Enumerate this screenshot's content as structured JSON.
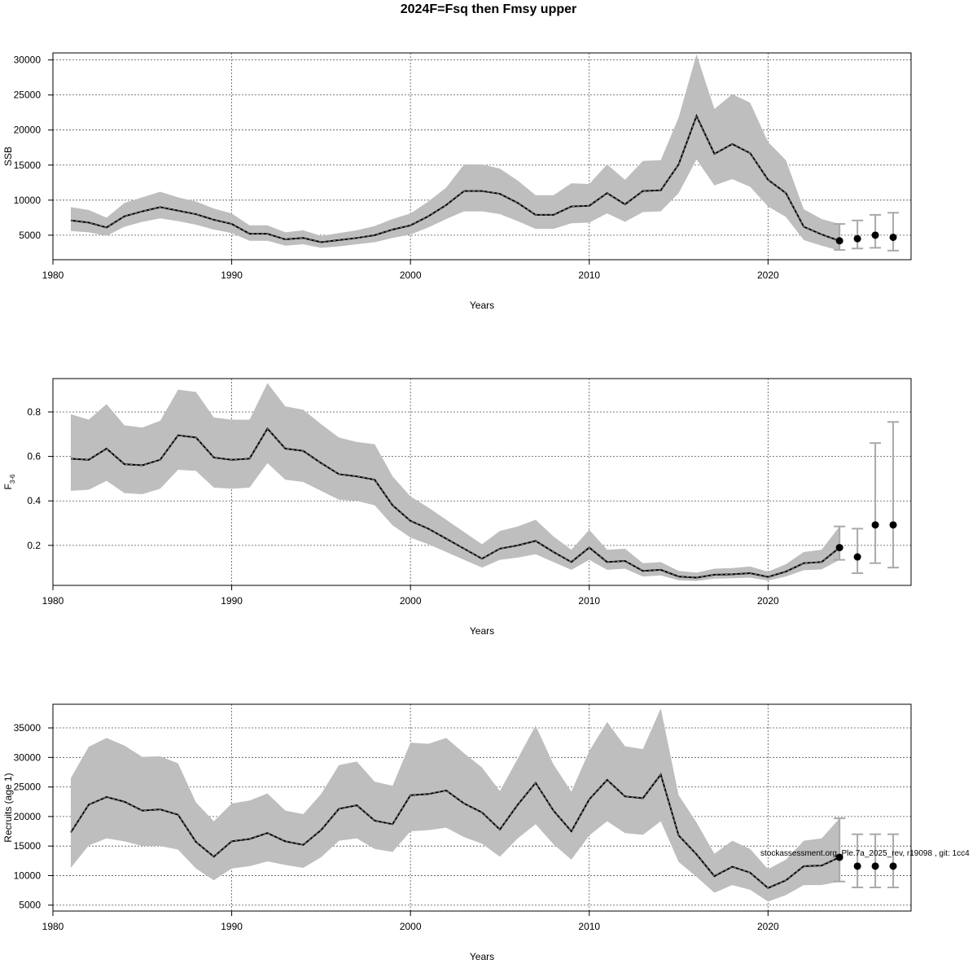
{
  "title": "2024F=Fsq then Fmsy upper",
  "footnote": "stockassessment.org, Ple.7a_2025_rev, r19098 , git: 1cc4",
  "chart_data": [
    {
      "type": "line",
      "xlabel": "Years",
      "ylabel": "SSB",
      "xlim": [
        1980,
        2028
      ],
      "ylim": [
        1500,
        31000
      ],
      "x_ticks": [
        1980,
        1990,
        2000,
        2010,
        2020
      ],
      "y_ticks": [
        5000,
        10000,
        15000,
        20000,
        25000,
        30000
      ],
      "grid": true,
      "historical": {
        "x": [
          1981,
          1982,
          1983,
          1984,
          1985,
          1986,
          1987,
          1988,
          1989,
          1990,
          1991,
          1992,
          1993,
          1994,
          1995,
          1996,
          1997,
          1998,
          1999,
          2000,
          2001,
          2002,
          2003,
          2004,
          2005,
          2006,
          2007,
          2008,
          2009,
          2010,
          2011,
          2012,
          2013,
          2014,
          2015,
          2016,
          2017,
          2018,
          2019,
          2020,
          2021,
          2022,
          2023,
          2024
        ],
        "estimate": [
          7100,
          6800,
          6100,
          7700,
          8400,
          9000,
          8500,
          8000,
          7200,
          6600,
          5200,
          5200,
          4400,
          4600,
          4000,
          4300,
          4600,
          5000,
          5800,
          6400,
          7700,
          9300,
          11300,
          11300,
          10900,
          9600,
          7900,
          7900,
          9100,
          9200,
          11000,
          9400,
          11300,
          11400,
          15100,
          22000,
          16600,
          18000,
          16700,
          12900,
          11000,
          6200,
          5100,
          4200
        ],
        "lower": [
          5600,
          5400,
          4900,
          6200,
          6900,
          7400,
          7000,
          6500,
          5800,
          5300,
          4200,
          4200,
          3500,
          3700,
          3200,
          3400,
          3700,
          4000,
          4600,
          5100,
          6100,
          7300,
          8400,
          8400,
          8000,
          7000,
          5900,
          5900,
          6700,
          6800,
          8100,
          6900,
          8300,
          8400,
          11000,
          15800,
          12100,
          13000,
          11900,
          9100,
          7600,
          4300,
          3500,
          2800
        ],
        "upper": [
          9000,
          8600,
          7500,
          9600,
          10400,
          11200,
          10400,
          9800,
          8800,
          8100,
          6400,
          6400,
          5400,
          5700,
          4900,
          5300,
          5700,
          6300,
          7300,
          8100,
          9800,
          11800,
          15100,
          15100,
          14500,
          12800,
          10700,
          10700,
          12400,
          12300,
          15100,
          12900,
          15600,
          15700,
          21800,
          30800,
          23000,
          25100,
          23900,
          18300,
          15700,
          8700,
          7300,
          6600
        ]
      },
      "forecast": {
        "x": [
          2024,
          2025,
          2026,
          2027
        ],
        "estimate": [
          4200,
          4500,
          5000,
          4700
        ],
        "lower": [
          2900,
          3100,
          3200,
          2800
        ],
        "upper": [
          6600,
          7100,
          7900,
          8200
        ]
      }
    },
    {
      "type": "line",
      "xlabel": "Years",
      "ylabel": "F",
      "ylabel_sub": "3-6",
      "xlim": [
        1980,
        2028
      ],
      "ylim": [
        0.02,
        0.95
      ],
      "x_ticks": [
        1980,
        1990,
        2000,
        2010,
        2020
      ],
      "y_ticks": [
        0.2,
        0.4,
        0.6,
        0.8
      ],
      "grid": true,
      "historical": {
        "x": [
          1981,
          1982,
          1983,
          1984,
          1985,
          1986,
          1987,
          1988,
          1989,
          1990,
          1991,
          1992,
          1993,
          1994,
          1995,
          1996,
          1997,
          1998,
          1999,
          2000,
          2001,
          2002,
          2003,
          2004,
          2005,
          2006,
          2007,
          2008,
          2009,
          2010,
          2011,
          2012,
          2013,
          2014,
          2015,
          2016,
          2017,
          2018,
          2019,
          2020,
          2021,
          2022,
          2023,
          2024
        ],
        "estimate": [
          0.59,
          0.585,
          0.635,
          0.565,
          0.56,
          0.585,
          0.695,
          0.685,
          0.595,
          0.585,
          0.59,
          0.725,
          0.635,
          0.625,
          0.57,
          0.52,
          0.51,
          0.495,
          0.38,
          0.31,
          0.275,
          0.23,
          0.185,
          0.14,
          0.185,
          0.2,
          0.22,
          0.17,
          0.125,
          0.19,
          0.125,
          0.13,
          0.085,
          0.09,
          0.06,
          0.055,
          0.068,
          0.07,
          0.075,
          0.058,
          0.082,
          0.12,
          0.125,
          0.19
        ],
        "lower": [
          0.445,
          0.45,
          0.49,
          0.435,
          0.43,
          0.455,
          0.54,
          0.535,
          0.46,
          0.455,
          0.46,
          0.57,
          0.495,
          0.485,
          0.445,
          0.405,
          0.4,
          0.38,
          0.29,
          0.235,
          0.205,
          0.17,
          0.135,
          0.1,
          0.135,
          0.145,
          0.16,
          0.125,
          0.09,
          0.135,
          0.09,
          0.095,
          0.06,
          0.065,
          0.043,
          0.04,
          0.05,
          0.052,
          0.055,
          0.042,
          0.06,
          0.088,
          0.092,
          0.135
        ],
        "upper": [
          0.79,
          0.765,
          0.835,
          0.74,
          0.73,
          0.76,
          0.9,
          0.89,
          0.775,
          0.765,
          0.765,
          0.93,
          0.825,
          0.81,
          0.745,
          0.685,
          0.665,
          0.655,
          0.51,
          0.42,
          0.37,
          0.315,
          0.26,
          0.205,
          0.265,
          0.285,
          0.315,
          0.24,
          0.18,
          0.27,
          0.18,
          0.185,
          0.12,
          0.125,
          0.085,
          0.077,
          0.095,
          0.098,
          0.105,
          0.082,
          0.115,
          0.17,
          0.18,
          0.285
        ]
      },
      "forecast": {
        "x": [
          2024,
          2025,
          2026,
          2027
        ],
        "estimate": [
          0.19,
          0.148,
          0.292,
          0.292
        ],
        "lower": [
          0.135,
          0.075,
          0.12,
          0.1
        ],
        "upper": [
          0.285,
          0.275,
          0.66,
          0.755
        ]
      }
    },
    {
      "type": "line",
      "xlabel": "Years",
      "ylabel": "Recruits (age 1)",
      "xlim": [
        1980,
        2028
      ],
      "ylim": [
        4000,
        39000
      ],
      "x_ticks": [
        1980,
        1990,
        2000,
        2010,
        2020
      ],
      "y_ticks": [
        5000,
        10000,
        15000,
        20000,
        25000,
        30000,
        35000
      ],
      "grid": true,
      "historical": {
        "x": [
          1981,
          1982,
          1983,
          1984,
          1985,
          1986,
          1987,
          1988,
          1989,
          1990,
          1991,
          1992,
          1993,
          1994,
          1995,
          1996,
          1997,
          1998,
          1999,
          2000,
          2001,
          2002,
          2003,
          2004,
          2005,
          2006,
          2007,
          2008,
          2009,
          2010,
          2011,
          2012,
          2013,
          2014,
          2015,
          2016,
          2017,
          2018,
          2019,
          2020,
          2021,
          2022,
          2023,
          2024
        ],
        "estimate": [
          17300,
          22000,
          23300,
          22500,
          21000,
          21200,
          20300,
          15700,
          13200,
          15800,
          16200,
          17200,
          15800,
          15200,
          17700,
          21300,
          21900,
          19300,
          18700,
          23600,
          23800,
          24400,
          22200,
          20700,
          17800,
          22000,
          25700,
          21000,
          17500,
          22900,
          26200,
          23400,
          23100,
          27100,
          16800,
          13600,
          9900,
          11500,
          10500,
          7900,
          9200,
          11600,
          11700,
          13100
        ],
        "lower": [
          11300,
          15100,
          16300,
          15800,
          15000,
          15000,
          14400,
          11200,
          9200,
          11200,
          11600,
          12400,
          11800,
          11300,
          13100,
          15900,
          16300,
          14500,
          14000,
          17500,
          17700,
          18100,
          16500,
          15400,
          13200,
          16300,
          18700,
          15300,
          12700,
          16800,
          19200,
          17200,
          16900,
          19200,
          12300,
          9800,
          7100,
          8400,
          7600,
          5600,
          6700,
          8400,
          8400,
          9000
        ],
        "upper": [
          26500,
          31800,
          33300,
          32000,
          30100,
          30200,
          29000,
          22400,
          19200,
          22200,
          22700,
          23900,
          21000,
          20400,
          23800,
          28700,
          29300,
          25900,
          25200,
          32500,
          32300,
          33300,
          30700,
          28300,
          24300,
          29800,
          35400,
          28800,
          24200,
          31100,
          36000,
          31900,
          31400,
          38300,
          23600,
          19000,
          13700,
          15900,
          14500,
          11100,
          12700,
          15900,
          16300,
          19700
        ]
      },
      "forecast": {
        "x": [
          2024,
          2025,
          2026,
          2027
        ],
        "estimate": [
          13100,
          11600,
          11600,
          11600
        ],
        "lower": [
          9000,
          8000,
          8000,
          8000
        ],
        "upper": [
          19700,
          17000,
          17000,
          17000
        ]
      }
    }
  ],
  "colors": {
    "band": "#bebebe",
    "line": "#000000",
    "grid": "#555555",
    "errorbar": "#a9a9a9"
  }
}
